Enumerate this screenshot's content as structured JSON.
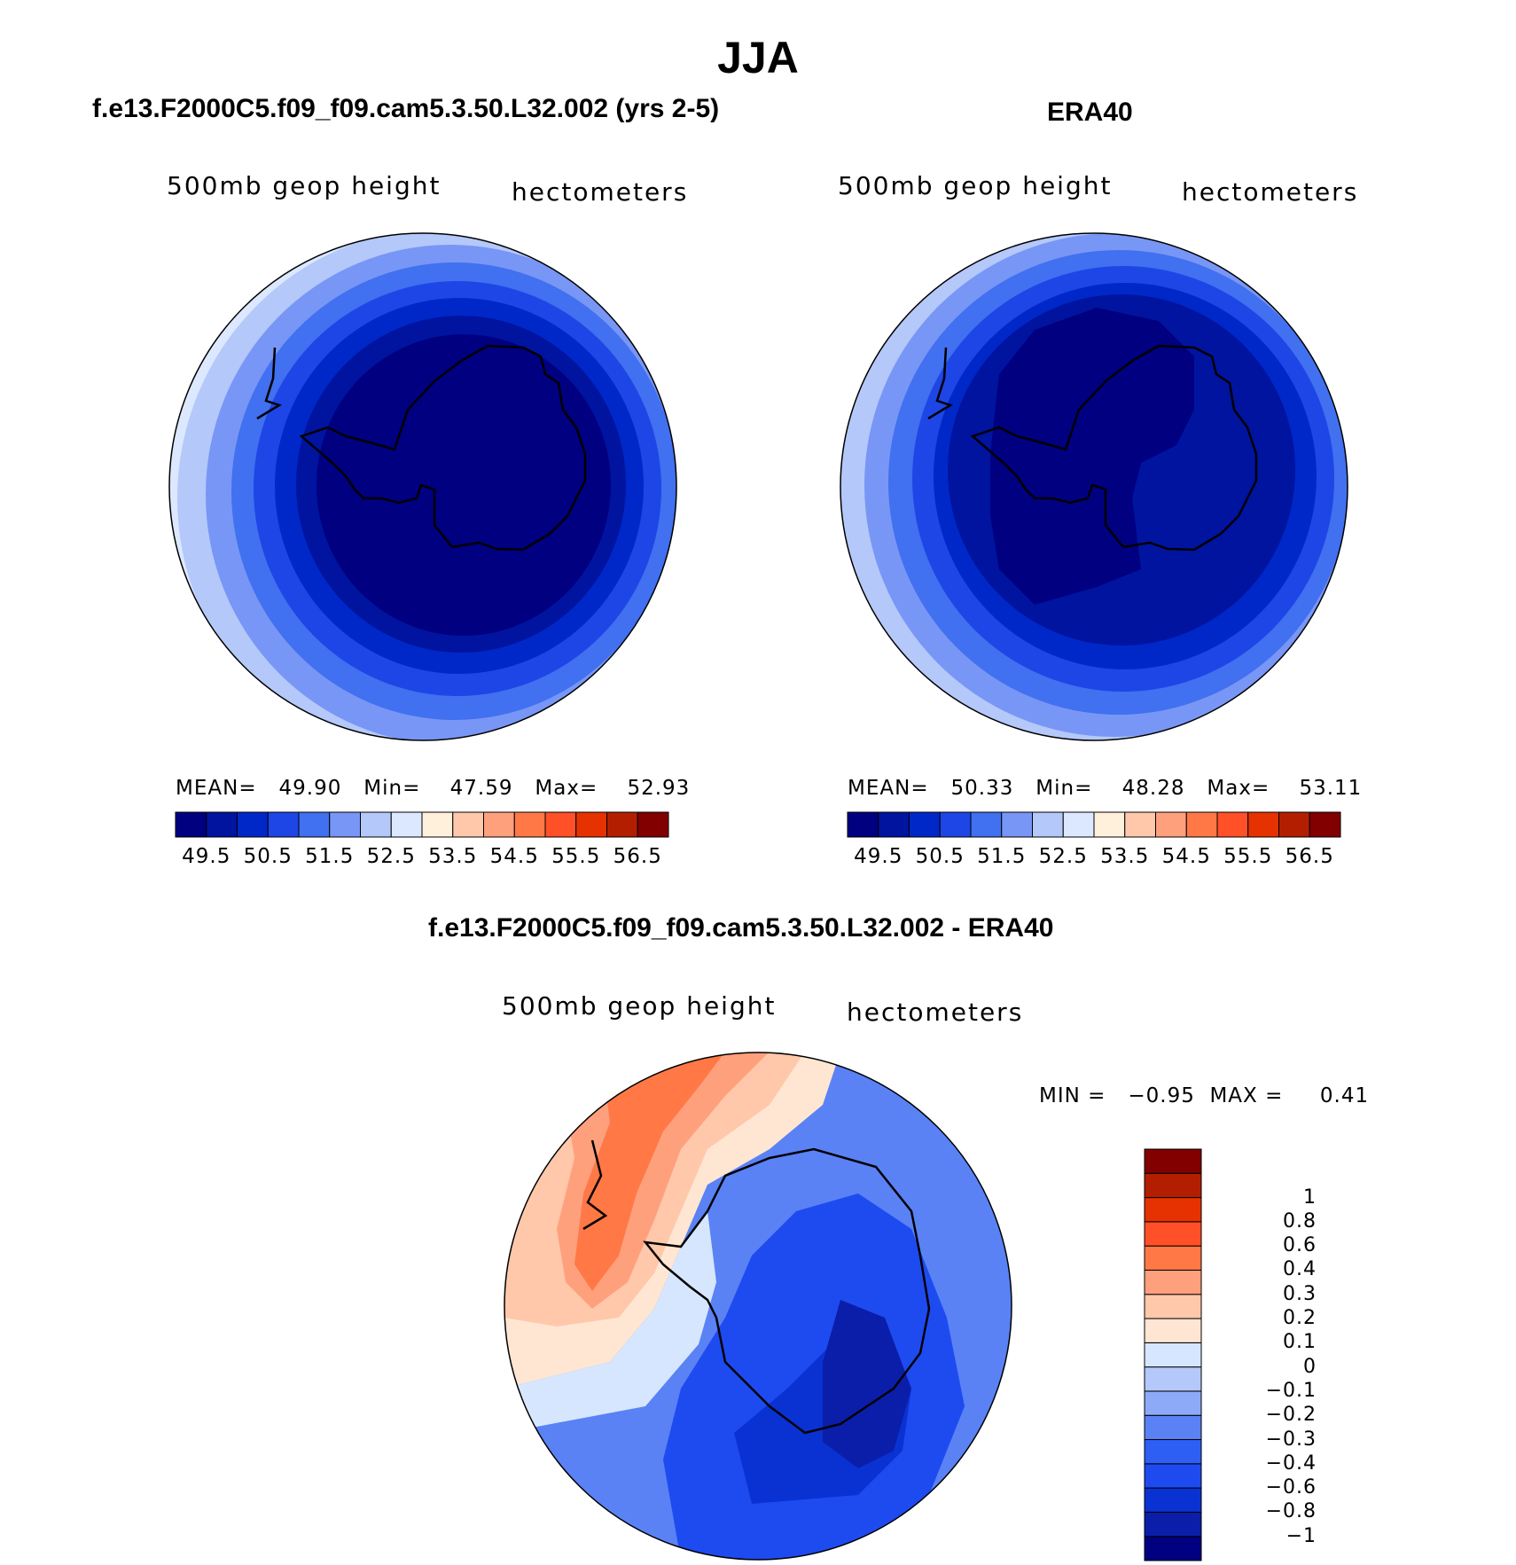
{
  "figure": {
    "title": "JJA",
    "panel_left_title": "f.e13.F2000C5.f09_f09.cam5.3.50.L32.002 (yrs 2-5)",
    "panel_right_title": "ERA40",
    "panel_diff_title": "f.e13.F2000C5.f09_f09.cam5.3.50.L32.002 - ERA40"
  },
  "panel_left": {
    "variable": "500mb geop height",
    "units": "hectometers",
    "stats": "MEAN=   49.90   Min=    47.59   Max=    52.93"
  },
  "panel_right": {
    "variable": "500mb geop height",
    "units": "hectometers",
    "stats": "MEAN=   50.33   Min=    48.28   Max=    53.11"
  },
  "panel_diff": {
    "variable": "500mb geop height",
    "units": "hectometers",
    "stats": "MIN =   −0.95  MAX =     0.41"
  },
  "colorbar_abs": {
    "colors": [
      "#000080",
      "#0014a0",
      "#0028c8",
      "#1e46e6",
      "#4170f0",
      "#7896f5",
      "#b4c8fa",
      "#dce8ff",
      "#fff0dc",
      "#ffc8aa",
      "#ffa07d",
      "#ff7846",
      "#ff5028",
      "#e63200",
      "#b41e00",
      "#820000"
    ],
    "tick_labels": [
      "49.5",
      "50.5",
      "51.5",
      "52.5",
      "53.5",
      "54.5",
      "55.5",
      "56.5"
    ]
  },
  "colorbar_diff": {
    "colors": [
      "#000080",
      "#0a1eaa",
      "#0a32d2",
      "#1e4bf0",
      "#2d5ff5",
      "#5a82f5",
      "#8caaf8",
      "#b4c8fa",
      "#d7e6ff",
      "#ffe6d2",
      "#ffc8aa",
      "#ffa07d",
      "#ff7846",
      "#ff5028",
      "#e63200",
      "#b41e00",
      "#820000"
    ],
    "tick_labels": [
      "−1",
      "−0.8",
      "−0.6",
      "−0.4",
      "−0.3",
      "−0.2",
      "−0.1",
      "0",
      "0.1",
      "0.2",
      "0.3",
      "0.4",
      "0.6",
      "0.8",
      "1"
    ]
  },
  "chart_data": [
    {
      "type": "heatmap",
      "title": "f.e13.F2000C5.f09_f09.cam5.3.50.L32.002 (yrs 2-5)",
      "variable": "500mb geop height",
      "units": "hectometers",
      "projection": "south polar stereographic",
      "mean": 49.9,
      "min": 47.59,
      "max": 52.93
    },
    {
      "type": "heatmap",
      "title": "ERA40",
      "variable": "500mb geop height",
      "units": "hectometers",
      "projection": "south polar stereographic",
      "mean": 50.33,
      "min": 48.28,
      "max": 53.11
    },
    {
      "type": "heatmap",
      "title": "f.e13.F2000C5.f09_f09.cam5.3.50.L32.002 - ERA40",
      "variable": "500mb geop height",
      "units": "hectometers",
      "projection": "south polar stereographic",
      "min": -0.95,
      "max": 0.41
    }
  ]
}
